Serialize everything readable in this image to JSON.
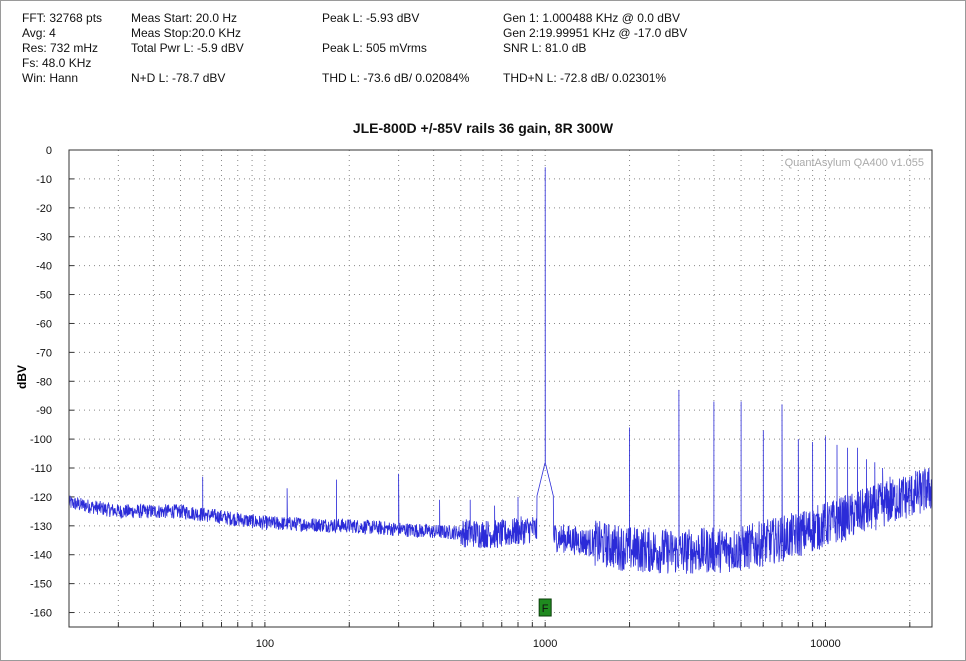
{
  "info": {
    "fft": "FFT: 32768 pts",
    "avg": "Avg: 4",
    "res": "Res: 732 mHz",
    "fs": "Fs: 48.0 KHz",
    "win": "Win: Hann",
    "meas_start": "Meas Start: 20.0 Hz",
    "meas_stop": "Meas Stop:20.0 KHz",
    "total_pwr": "Total Pwr L: -5.9 dBV",
    "nd": "N+D L: -78.7 dBV",
    "peak_dbv": "Peak L: -5.93 dBV",
    "peak_mv": "Peak L: 505 mVrms",
    "thd": "THD L: -73.6 dB/ 0.02084%",
    "gen1": "Gen 1: 1.000488 KHz @ 0.0  dBV",
    "gen2": "Gen 2:19.99951 KHz @ -17.0  dBV",
    "snr": "SNR L: 81.0 dB",
    "thdn": "THD+N L: -72.8 dB/ 0.02301%"
  },
  "chart_data": {
    "type": "line",
    "title": "JLE-800D +/-85V rails 36 gain, 8R 300W",
    "xlabel": "",
    "ylabel": "dBV",
    "xscale": "log",
    "xlim": [
      20,
      24000
    ],
    "ylim": [
      -165,
      0
    ],
    "y_ticks": [
      0,
      -10,
      -20,
      -30,
      -40,
      -50,
      -60,
      -70,
      -80,
      -90,
      -100,
      -110,
      -120,
      -130,
      -140,
      -150,
      -160
    ],
    "y_tick_labels": [
      "0",
      "-10",
      "-20",
      "-30",
      "-40",
      "-50",
      "-60",
      "-70",
      "-80",
      "-90",
      "-100",
      "-110",
      "-120",
      "-130",
      "-140",
      "-150",
      "-160"
    ],
    "x_ticks": [
      100,
      1000,
      10000
    ],
    "x_tick_labels": [
      "100",
      "1000",
      "10000"
    ],
    "grid": "dotted",
    "watermark": "QuantAsylum QA400 v1.055",
    "fundamental_marker": {
      "label": "F",
      "x": 1000,
      "color": "#1f8a1f"
    },
    "series": [
      {
        "color": "#2b2bd8",
        "noise_floor": [
          [
            20,
            -122
          ],
          [
            30,
            -125
          ],
          [
            50,
            -125
          ],
          [
            100,
            -129
          ],
          [
            200,
            -130
          ],
          [
            400,
            -132
          ],
          [
            700,
            -133
          ],
          [
            900,
            -131
          ],
          [
            1100,
            -134
          ],
          [
            1500,
            -136
          ],
          [
            2000,
            -138
          ],
          [
            3000,
            -139
          ],
          [
            5000,
            -138
          ],
          [
            8000,
            -133
          ],
          [
            12000,
            -127
          ],
          [
            18000,
            -121
          ],
          [
            24000,
            -117
          ]
        ],
        "peaks": [
          {
            "x": 60,
            "y": -113
          },
          {
            "x": 120,
            "y": -117
          },
          {
            "x": 180,
            "y": -114
          },
          {
            "x": 300,
            "y": -112
          },
          {
            "x": 420,
            "y": -121
          },
          {
            "x": 540,
            "y": -121
          },
          {
            "x": 660,
            "y": -123
          },
          {
            "x": 800,
            "y": -120
          },
          {
            "x": 1000,
            "y": -6
          },
          {
            "x": 2000,
            "y": -96
          },
          {
            "x": 3000,
            "y": -83
          },
          {
            "x": 4000,
            "y": -87
          },
          {
            "x": 5000,
            "y": -87
          },
          {
            "x": 6000,
            "y": -97
          },
          {
            "x": 7000,
            "y": -88
          },
          {
            "x": 8000,
            "y": -100
          },
          {
            "x": 9000,
            "y": -101
          },
          {
            "x": 10000,
            "y": -99
          },
          {
            "x": 11000,
            "y": -102
          },
          {
            "x": 12000,
            "y": -103
          },
          {
            "x": 13000,
            "y": -103
          },
          {
            "x": 14000,
            "y": -107
          },
          {
            "x": 15000,
            "y": -108
          },
          {
            "x": 16000,
            "y": -110
          },
          {
            "x": 17000,
            "y": -113
          },
          {
            "x": 18000,
            "y": -116
          },
          {
            "x": 19000,
            "y": -113
          },
          {
            "x": 20000,
            "y": -113
          },
          {
            "x": 21000,
            "y": -111
          },
          {
            "x": 22000,
            "y": -115
          },
          {
            "x": 23000,
            "y": -114
          }
        ]
      }
    ]
  }
}
